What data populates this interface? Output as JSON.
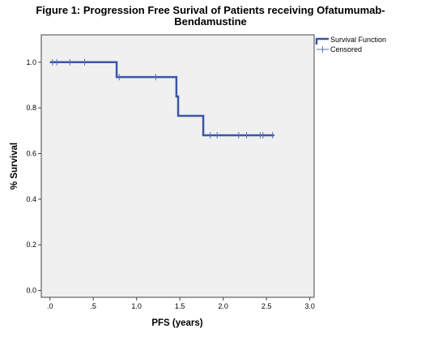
{
  "chart_data": {
    "type": "line",
    "title_lines": [
      "Figure 1: Progression Free Surival of Patients receiving Ofatumumab-",
      "Bendamustine"
    ],
    "xlabel": "PFS (years)",
    "ylabel": "% Survival",
    "xlim": [
      -0.1,
      3.05
    ],
    "ylim": [
      -0.03,
      1.12
    ],
    "x_ticks": [
      0,
      0.5,
      1.0,
      1.5,
      2.0,
      2.5,
      3.0
    ],
    "x_tick_labels": [
      ".0",
      ".5",
      "1.0",
      "1.5",
      "2.0",
      "2.5",
      "3.0"
    ],
    "y_ticks": [
      0,
      0.2,
      0.4,
      0.6,
      0.8,
      1.0
    ],
    "y_tick_labels": [
      "0.0",
      "0.2",
      "0.4",
      "0.6",
      "0.8",
      "1.0"
    ],
    "grid": false,
    "legend_position": "top-right",
    "series": [
      {
        "name": "Survival Function",
        "kind": "step",
        "color": "#3a56a6",
        "x": [
          0.0,
          0.77,
          1.46,
          1.48,
          1.77,
          2.59
        ],
        "y": [
          1.0,
          0.935,
          0.85,
          0.765,
          0.68,
          0.68
        ]
      },
      {
        "name": "Censored",
        "kind": "censor-marks",
        "color": "#5a73b8",
        "x": [
          0.03,
          0.08,
          0.23,
          0.4,
          0.8,
          1.22,
          1.85,
          1.93,
          2.18,
          2.27,
          2.43,
          2.46,
          2.57
        ],
        "y": [
          1.0,
          1.0,
          1.0,
          1.0,
          0.935,
          0.935,
          0.68,
          0.68,
          0.68,
          0.68,
          0.68,
          0.68,
          0.68
        ]
      }
    ]
  },
  "colors": {
    "plot_background": "#f0f0f0",
    "line": "#3a56a6"
  }
}
